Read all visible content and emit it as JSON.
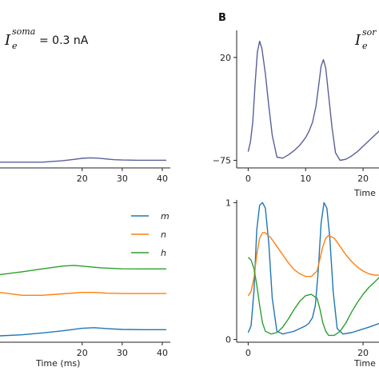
{
  "panel_b_letter": "B",
  "annotation_a": {
    "symbol": "I",
    "sub": "e",
    "sup": "soma",
    "value": "= 0.3 nA"
  },
  "annotation_b": {
    "symbol": "I",
    "sub": "e",
    "sup": "sor"
  },
  "chart_data": [
    {
      "id": "A-top",
      "type": "line",
      "xlabel": "",
      "ylabel": "",
      "xlim": [
        -0.5,
        42
      ],
      "ylim": [
        -80,
        40
      ],
      "xticks": [
        20,
        30,
        40
      ],
      "yticks": [],
      "series": [
        {
          "color": "#5a5f9a",
          "x": [
            -0.5,
            10,
            15,
            18,
            20,
            22,
            24,
            26,
            28,
            30,
            34,
            38,
            41
          ],
          "y": [
            -75,
            -75,
            -73.8,
            -72.5,
            -71.6,
            -71.2,
            -71.5,
            -72.2,
            -72.8,
            -73.1,
            -73.3,
            -73.3,
            -73.3
          ]
        }
      ]
    },
    {
      "id": "A-bottom",
      "type": "line",
      "xlabel": "Time (ms)",
      "ylabel": "",
      "xlim": [
        -0.5,
        42
      ],
      "ylim": [
        0,
        1
      ],
      "xticks": [
        20,
        30,
        40
      ],
      "yticks": [],
      "legend": {
        "position": "top-right",
        "entries": [
          "m",
          "n",
          "h"
        ]
      },
      "series": [
        {
          "name": "m",
          "color": "#1f77b4",
          "x": [
            -0.5,
            5,
            10,
            15,
            20,
            23,
            26,
            30,
            35,
            41
          ],
          "y": [
            0.045,
            0.052,
            0.065,
            0.08,
            0.098,
            0.102,
            0.096,
            0.09,
            0.088,
            0.088
          ]
        },
        {
          "name": "n",
          "color": "#ff7f0e",
          "x": [
            -0.5,
            5,
            10,
            15,
            20,
            23,
            26,
            30,
            35,
            41
          ],
          "y": [
            0.35,
            0.33,
            0.33,
            0.34,
            0.35,
            0.35,
            0.345,
            0.342,
            0.342,
            0.342
          ]
        },
        {
          "name": "h",
          "color": "#2ca02c",
          "x": [
            -0.5,
            5,
            10,
            15,
            18,
            21,
            25,
            30,
            35,
            41
          ],
          "y": [
            0.475,
            0.495,
            0.515,
            0.535,
            0.54,
            0.532,
            0.522,
            0.516,
            0.515,
            0.515
          ]
        }
      ]
    },
    {
      "id": "B-top",
      "type": "line",
      "xlabel": "Time",
      "ylabel": "",
      "xlim": [
        -2,
        25
      ],
      "ylim": [
        -82,
        45
      ],
      "xticks": [
        0,
        10,
        20
      ],
      "yticks": [
        20,
        -75
      ],
      "series": [
        {
          "color": "#5a5f9a",
          "x": [
            0,
            0.4,
            0.8,
            1.2,
            1.6,
            2.0,
            2.4,
            3.0,
            3.6,
            4.2,
            5,
            6,
            7,
            8,
            9,
            10,
            10.6,
            11.2,
            11.8,
            12.3,
            12.7,
            13.1,
            13.5,
            14.0,
            14.6,
            15.2,
            16,
            17,
            18,
            19,
            20,
            21,
            22,
            23,
            24.5
          ],
          "y": [
            -67,
            -58,
            -40,
            -5,
            25,
            35,
            28,
            5,
            -25,
            -52,
            -72,
            -73,
            -70,
            -66,
            -61,
            -54,
            -48,
            -40,
            -25,
            -5,
            12,
            18,
            10,
            -15,
            -45,
            -68,
            -75,
            -74,
            -71,
            -67,
            -62,
            -57,
            -52,
            -47,
            -40
          ]
        }
      ]
    },
    {
      "id": "B-bottom",
      "type": "line",
      "xlabel": "Time",
      "ylabel": "",
      "xlim": [
        -2,
        25
      ],
      "ylim": [
        -0.02,
        1.02
      ],
      "xticks": [
        0,
        20
      ],
      "yticks": [
        0,
        1
      ],
      "series": [
        {
          "name": "m",
          "color": "#1f77b4",
          "x": [
            0,
            0.5,
            1.0,
            1.5,
            2.0,
            2.5,
            3.0,
            3.6,
            4.2,
            5,
            6,
            7,
            8,
            9,
            10,
            10.6,
            11.2,
            11.7,
            12.2,
            12.7,
            13.2,
            13.7,
            14.2,
            14.8,
            15.5,
            16.5,
            18,
            19.5,
            21,
            23,
            24.5
          ],
          "y": [
            0.05,
            0.1,
            0.35,
            0.8,
            0.98,
            1.0,
            0.96,
            0.7,
            0.3,
            0.06,
            0.04,
            0.05,
            0.06,
            0.08,
            0.1,
            0.12,
            0.16,
            0.25,
            0.5,
            0.85,
            1.0,
            0.96,
            0.75,
            0.35,
            0.08,
            0.04,
            0.05,
            0.07,
            0.09,
            0.12,
            0.15
          ]
        },
        {
          "name": "n",
          "color": "#ff7f0e",
          "x": [
            0,
            0.5,
            1,
            1.5,
            2,
            2.5,
            3,
            4,
            5,
            6,
            7,
            8,
            9,
            10,
            11,
            12,
            13,
            13.5,
            14,
            15,
            16,
            17,
            18,
            19,
            20,
            21,
            22,
            23,
            24.5
          ],
          "y": [
            0.32,
            0.35,
            0.45,
            0.62,
            0.74,
            0.78,
            0.78,
            0.74,
            0.68,
            0.62,
            0.56,
            0.51,
            0.48,
            0.46,
            0.46,
            0.5,
            0.68,
            0.74,
            0.76,
            0.74,
            0.68,
            0.62,
            0.57,
            0.53,
            0.5,
            0.48,
            0.47,
            0.47,
            0.48
          ]
        },
        {
          "name": "h",
          "color": "#2ca02c",
          "x": [
            0,
            0.5,
            1,
            1.5,
            2,
            2.5,
            3,
            4,
            5,
            6,
            7,
            8,
            9,
            10,
            11,
            12,
            12.5,
            13,
            13.5,
            14,
            15,
            16,
            17,
            18,
            19,
            20,
            21,
            22,
            23,
            24.5
          ],
          "y": [
            0.6,
            0.58,
            0.52,
            0.4,
            0.25,
            0.12,
            0.06,
            0.04,
            0.05,
            0.09,
            0.15,
            0.22,
            0.28,
            0.32,
            0.33,
            0.3,
            0.22,
            0.12,
            0.06,
            0.03,
            0.03,
            0.06,
            0.12,
            0.2,
            0.27,
            0.33,
            0.38,
            0.42,
            0.46,
            0.5
          ]
        }
      ]
    }
  ]
}
